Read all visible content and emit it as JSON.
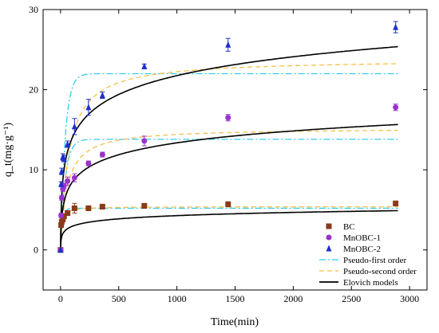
{
  "chart_data": {
    "type": "scatter",
    "xlabel": "Time(min)",
    "ylabel": "q_t(mg·g⁻¹)",
    "xlim": [
      -150,
      3150
    ],
    "ylim": [
      -5,
      30
    ],
    "xticks": [
      0,
      500,
      1000,
      1500,
      2000,
      2500,
      3000
    ],
    "yticks": [
      0,
      10,
      20,
      30
    ],
    "grid": false,
    "legend_position": "bottom-right",
    "series": [
      {
        "name": "BC",
        "marker": "square",
        "color": "#8B3A1A",
        "x": [
          0,
          5,
          10,
          20,
          30,
          60,
          120,
          240,
          360,
          720,
          1440,
          2880
        ],
        "y": [
          0,
          3.1,
          3.5,
          3.8,
          4.2,
          4.6,
          5.2,
          5.2,
          5.4,
          5.5,
          5.7,
          5.8
        ],
        "err": [
          0,
          0.3,
          0.3,
          0.3,
          0.3,
          0.3,
          0.6,
          0.3,
          0.3,
          0.3,
          0.3,
          0.3
        ]
      },
      {
        "name": "MnOBC-1",
        "marker": "circle",
        "color": "#9933CC",
        "x": [
          0,
          5,
          10,
          20,
          30,
          60,
          120,
          240,
          360,
          720,
          1440,
          2880
        ],
        "y": [
          0,
          4.3,
          6.5,
          7.6,
          8.0,
          8.6,
          9.0,
          10.8,
          11.9,
          13.6,
          16.5,
          17.8
        ],
        "err": [
          0,
          0.3,
          0.3,
          0.3,
          0.3,
          0.5,
          0.5,
          0.3,
          0.3,
          0.6,
          0.4,
          0.4
        ]
      },
      {
        "name": "MnOBC-2",
        "marker": "triangle",
        "color": "#1F2FCC",
        "x": [
          0,
          5,
          10,
          20,
          30,
          60,
          120,
          240,
          360,
          720,
          1440,
          2880
        ],
        "y": [
          0,
          8.2,
          9.8,
          11.6,
          11.4,
          13.2,
          15.4,
          17.8,
          19.3,
          22.9,
          25.6,
          27.8
        ],
        "err": [
          0,
          0.3,
          0.4,
          0.4,
          0.4,
          0.4,
          1.0,
          1.0,
          0.4,
          0.3,
          0.8,
          0.7
        ]
      }
    ],
    "models": [
      {
        "name": "Pseudo-first order",
        "style": "dashdot",
        "color": "#33CCEE",
        "curves": [
          {
            "for": "BC",
            "qe": 5.2,
            "k1": 0.06
          },
          {
            "for": "MnOBC-1",
            "qe": 13.8,
            "k1": 0.025
          },
          {
            "for": "MnOBC-2",
            "qe": 22.0,
            "k1": 0.025
          }
        ]
      },
      {
        "name": "Pseudo-second order",
        "style": "dashed",
        "color": "#F2C04A",
        "curves": [
          {
            "for": "BC",
            "qe": 5.4,
            "k2": 0.02
          },
          {
            "for": "MnOBC-1",
            "qe": 15.2,
            "k2": 0.0012
          },
          {
            "for": "MnOBC-2",
            "qe": 23.8,
            "k2": 0.0006
          }
        ]
      },
      {
        "name": "Elovich models",
        "style": "solid",
        "color": "#000000",
        "curves": [
          {
            "for": "BC",
            "a": 1.6,
            "b": 0.58
          },
          {
            "for": "MnOBC-1",
            "a": 0.5,
            "b": 2.15
          },
          {
            "for": "MnOBC-2",
            "a": 0.6,
            "b": 3.4
          }
        ]
      }
    ]
  }
}
